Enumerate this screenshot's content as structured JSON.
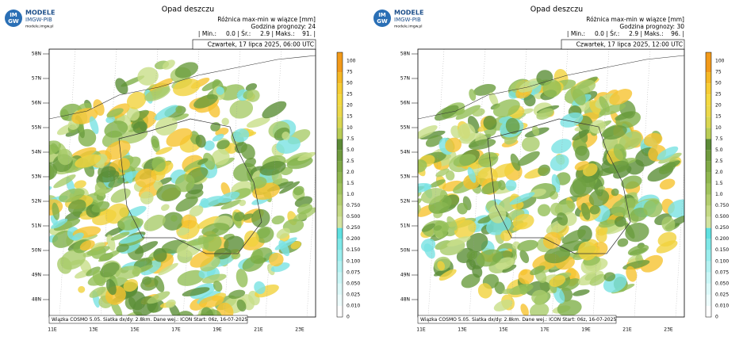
{
  "panels": [
    {
      "logo": {
        "mark_top": "IM",
        "mark_bottom": "GW",
        "name": "MODELE",
        "org": "IMGW-PIB",
        "url": "modele.imgw.pl"
      },
      "title": "Opad deszczu",
      "subtitle": "Różnica max-min w wiązce [mm]",
      "forecast_hour": "Godzina prognozy: 24",
      "stats": "| Min.:     0.0 | Śr.:     2.9 | Maks.:    91. |",
      "date": "Czwartek, 17 lipca 2025, 06:00 UTC",
      "footer": "Wiązka COSMO 5.05. Siatka dx/dy: 2.8km. Dane wej.: ICON Start: 06z, 16-07-2025",
      "lat_labels": [
        "58N",
        "57N",
        "56N",
        "55N",
        "54N",
        "53N",
        "52N",
        "51N",
        "50N",
        "49N",
        "48N"
      ],
      "lon_labels": [
        "11E",
        "13E",
        "15E",
        "17E",
        "19E",
        "21E",
        "23E"
      ],
      "colorbar_labels": [
        "100",
        "75",
        "50",
        "25",
        "20",
        "15",
        "10",
        "7.5",
        "5.0",
        "2.5",
        "2.0",
        "1.5",
        "1.0",
        "0.750",
        "0.500",
        "0.250",
        "0.200",
        "0.150",
        "0.100",
        "0.075",
        "0.050",
        "0.025",
        "0.010",
        "0"
      ]
    },
    {
      "logo": {
        "mark_top": "IM",
        "mark_bottom": "GW",
        "name": "MODELE",
        "org": "IMGW-PIB",
        "url": "modele.imgw.pl"
      },
      "title": "Opad deszczu",
      "subtitle": "Różnica max-min w wiązce [mm]",
      "forecast_hour": "Godzina prognozy: 30",
      "stats": "| Min.:     0.0 | Śr.:     2.9 | Maks.:    96. |",
      "date": "Czwartek, 17 lipca 2025, 12:00 UTC",
      "footer": "Wiązka COSMO 5.05. Siatka dx/dy: 2.8km. Dane wej.: ICON Start: 06z, 16-07-2025",
      "lat_labels": [
        "58N",
        "57N",
        "56N",
        "55N",
        "54N",
        "53N",
        "52N",
        "51N",
        "50N",
        "49N",
        "48N"
      ],
      "lon_labels": [
        "11E",
        "13E",
        "15E",
        "17E",
        "19E",
        "21E",
        "23E"
      ],
      "colorbar_labels": [
        "100",
        "75",
        "50",
        "25",
        "20",
        "15",
        "10",
        "7.5",
        "5.0",
        "2.5",
        "2.0",
        "1.5",
        "1.0",
        "0.750",
        "0.500",
        "0.250",
        "0.200",
        "0.150",
        "0.100",
        "0.075",
        "0.050",
        "0.025",
        "0.010",
        "0"
      ]
    }
  ]
}
